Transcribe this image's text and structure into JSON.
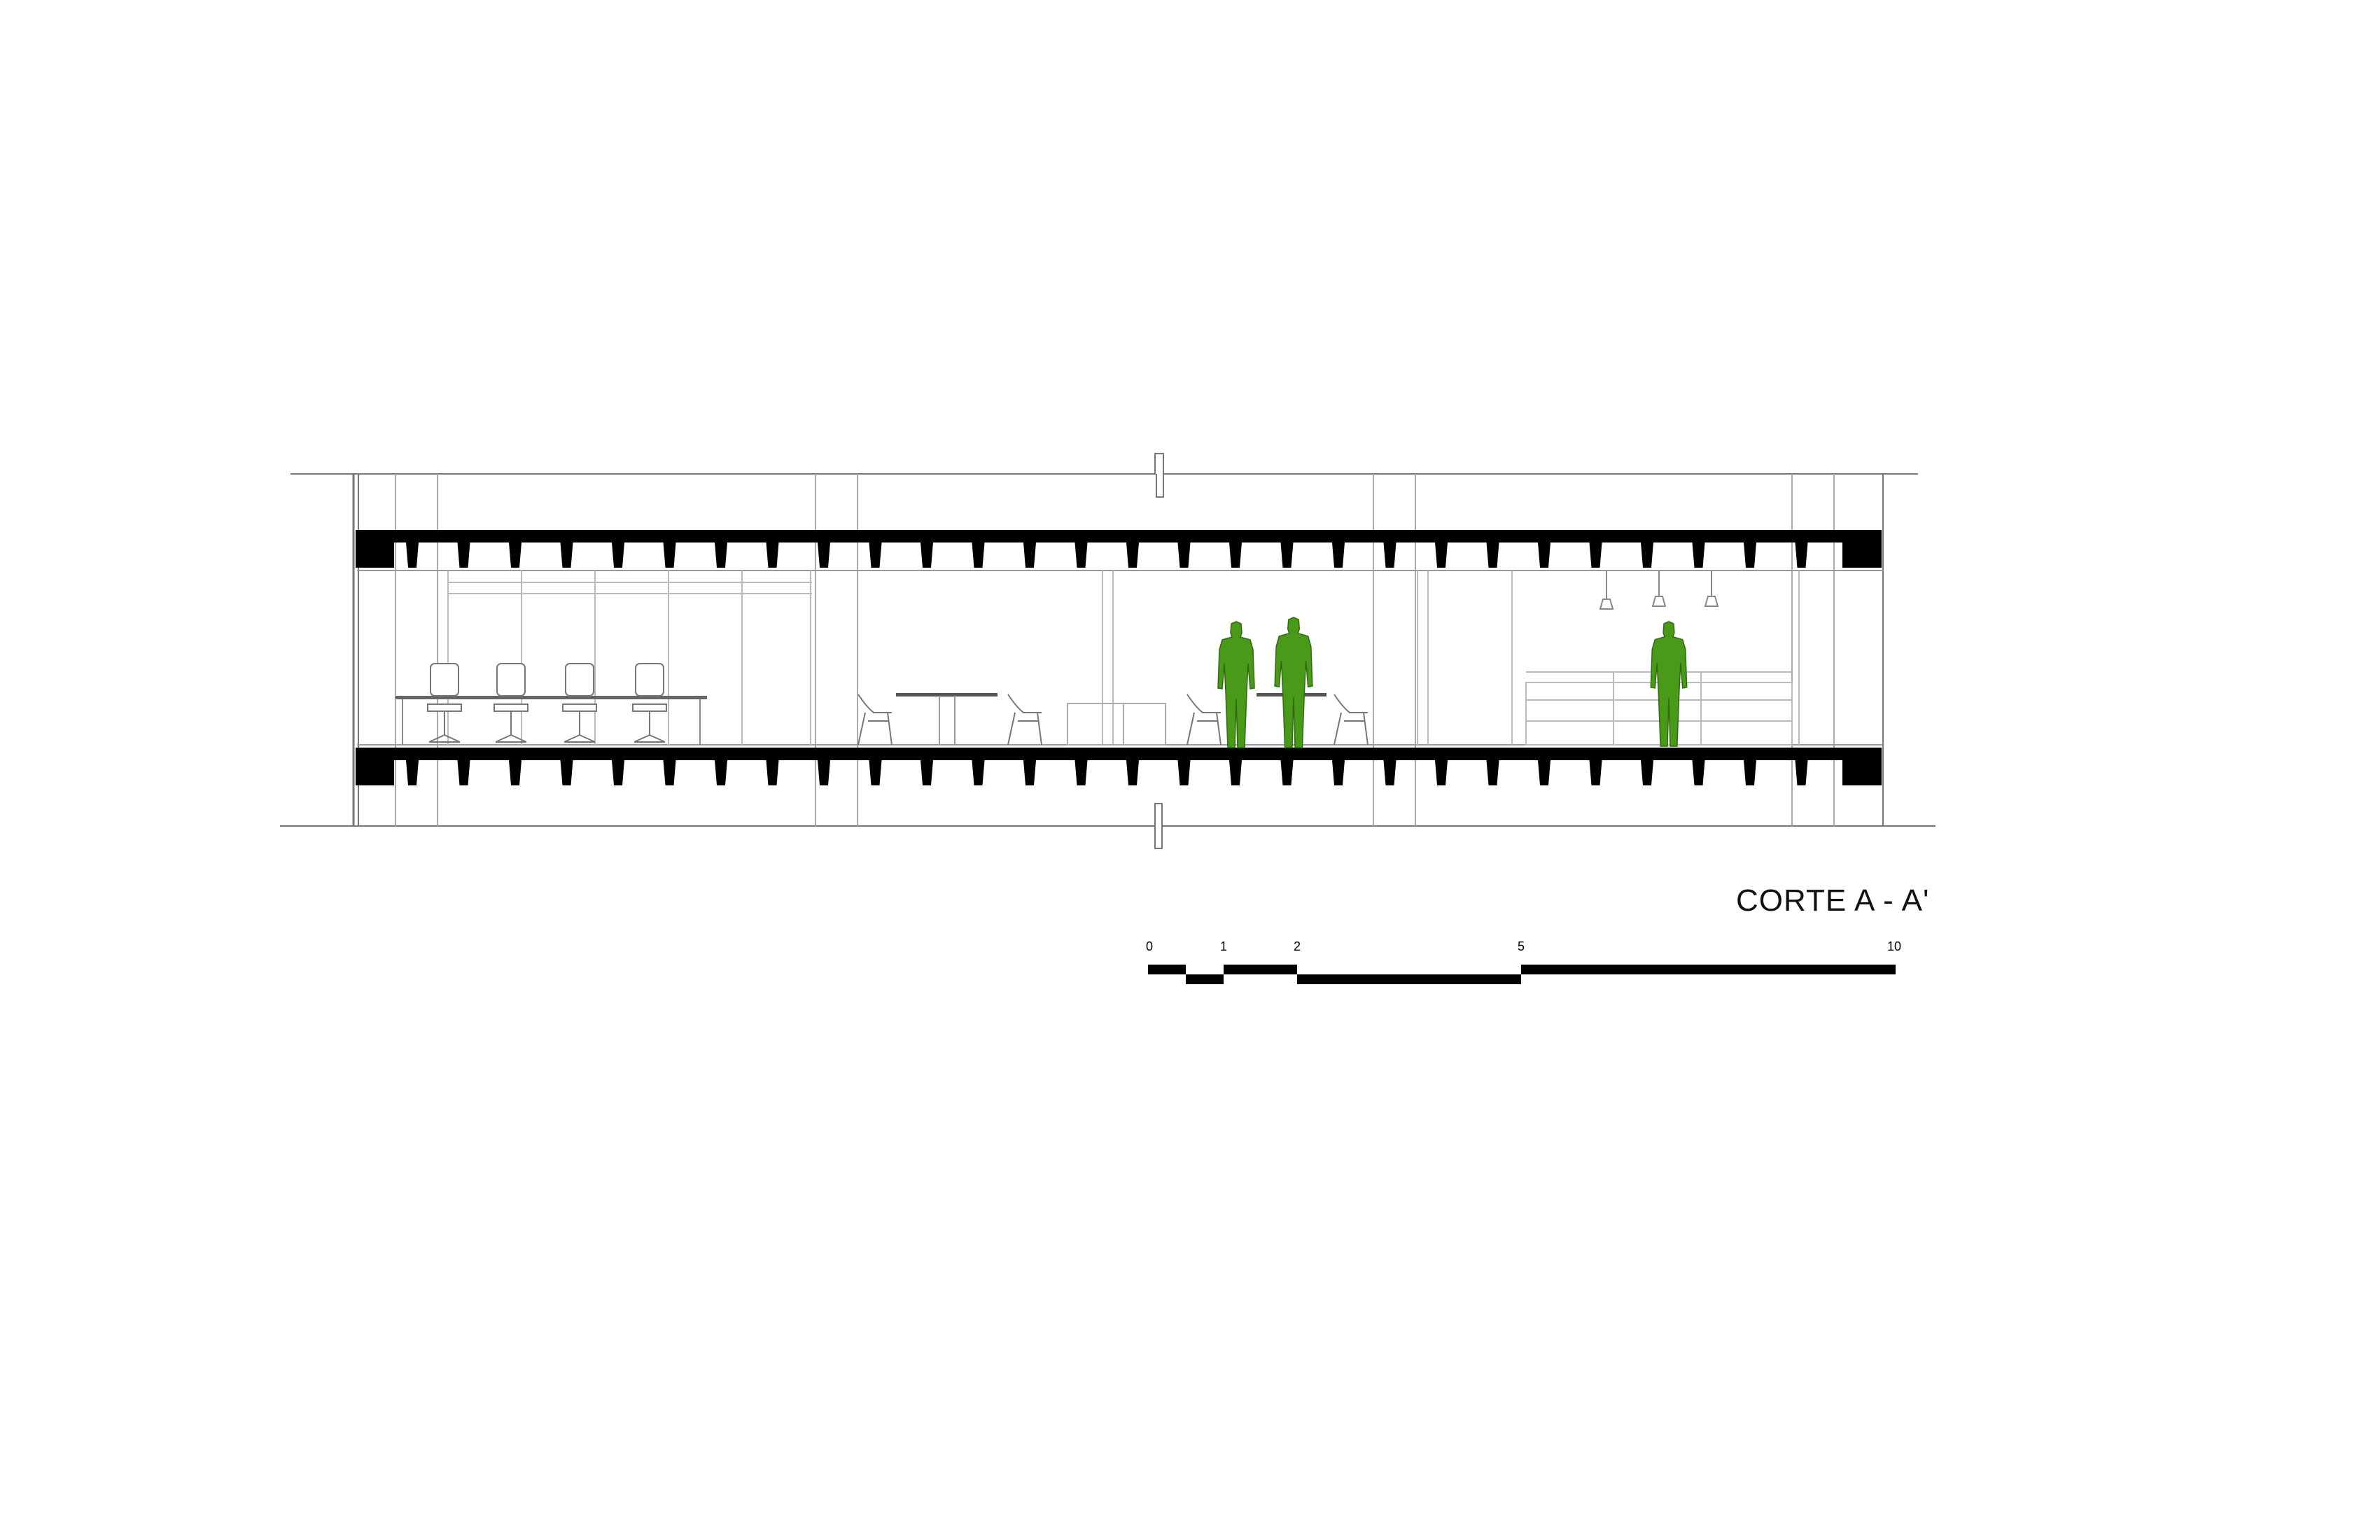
{
  "drawing": {
    "title": "CORTE A - A'",
    "scale_bar": {
      "ticks": [
        "0",
        "1",
        "2",
        "5",
        "10"
      ]
    },
    "figure_color": "#4a9a1a",
    "slab_color": "#000000",
    "line_color": "#9a9a9a"
  }
}
